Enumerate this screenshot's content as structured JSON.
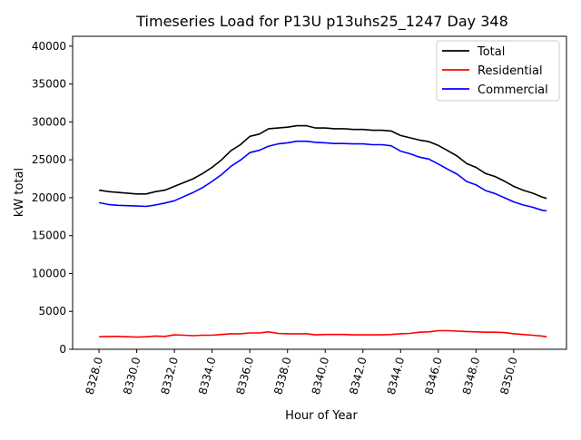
{
  "chart_data": {
    "type": "line",
    "title": "Timeseries Load for P13U p13uhs25_1247  Day 348",
    "xlabel": "Hour of Year",
    "ylabel": "kW total",
    "xlim": [
      8326.6,
      8352.8
    ],
    "ylim": [
      0,
      41300
    ],
    "xticks": [
      "8328.0",
      "8330.0",
      "8332.0",
      "8334.0",
      "8336.0",
      "8338.0",
      "8340.0",
      "8342.0",
      "8344.0",
      "8346.0",
      "8348.0",
      "8350.0"
    ],
    "xtick_values": [
      8328,
      8330,
      8332,
      8334,
      8336,
      8338,
      8340,
      8342,
      8344,
      8346,
      8348,
      8350
    ],
    "yticks": [
      "0",
      "5000",
      "10000",
      "15000",
      "20000",
      "25000",
      "30000",
      "35000",
      "40000"
    ],
    "ytick_values": [
      0,
      5000,
      10000,
      15000,
      20000,
      25000,
      30000,
      35000,
      40000
    ],
    "legend_position": "top-right",
    "x": [
      8328,
      8328.5,
      8329,
      8329.5,
      8330,
      8330.5,
      8331,
      8331.5,
      8332,
      8332.5,
      8333,
      8333.5,
      8334,
      8334.5,
      8335,
      8335.5,
      8336,
      8336.5,
      8337,
      8337.5,
      8338,
      8338.5,
      8339,
      8339.5,
      8340,
      8340.5,
      8341,
      8341.5,
      8342,
      8342.5,
      8343,
      8343.5,
      8344,
      8344.5,
      8345,
      8345.5,
      8346,
      8346.5,
      8347,
      8347.5,
      8348,
      8348.5,
      8349,
      8349.5,
      8350,
      8350.5,
      8351,
      8351.5,
      8351.75
    ],
    "series": [
      {
        "name": "Total",
        "color": "#000000",
        "values": [
          21000,
          20800,
          20700,
          20600,
          20500,
          20500,
          20800,
          21000,
          21500,
          22000,
          22500,
          23200,
          24000,
          25000,
          26200,
          27000,
          28100,
          28400,
          29100,
          29200,
          29300,
          29500,
          29500,
          29200,
          29200,
          29100,
          29100,
          29000,
          29000,
          28900,
          28900,
          28800,
          28200,
          27900,
          27600,
          27400,
          26900,
          26200,
          25500,
          24500,
          24000,
          23200,
          22800,
          22200,
          21500,
          21000,
          20600,
          20100,
          19900
        ]
      },
      {
        "name": "Residential",
        "color": "#ff0000",
        "values": [
          1650,
          1700,
          1700,
          1650,
          1600,
          1650,
          1750,
          1700,
          1900,
          1850,
          1800,
          1850,
          1850,
          1950,
          2050,
          2050,
          2150,
          2150,
          2300,
          2100,
          2050,
          2050,
          2050,
          1900,
          1950,
          1950,
          1950,
          1900,
          1900,
          1900,
          1900,
          1950,
          2050,
          2100,
          2250,
          2300,
          2450,
          2450,
          2400,
          2350,
          2300,
          2250,
          2250,
          2200,
          2050,
          1950,
          1850,
          1750,
          1650
        ]
      },
      {
        "name": "Commercial",
        "color": "#0000ff",
        "values": [
          19350,
          19100,
          19000,
          18950,
          18900,
          18850,
          19050,
          19300,
          19600,
          20150,
          20700,
          21350,
          22150,
          23050,
          24150,
          24950,
          25950,
          26250,
          26800,
          27100,
          27250,
          27450,
          27450,
          27300,
          27250,
          27150,
          27150,
          27100,
          27100,
          27000,
          27000,
          26850,
          26150,
          25800,
          25350,
          25100,
          24450,
          23750,
          23100,
          22150,
          21700,
          20950,
          20550,
          20000,
          19450,
          19050,
          18750,
          18350,
          18250
        ]
      }
    ]
  }
}
